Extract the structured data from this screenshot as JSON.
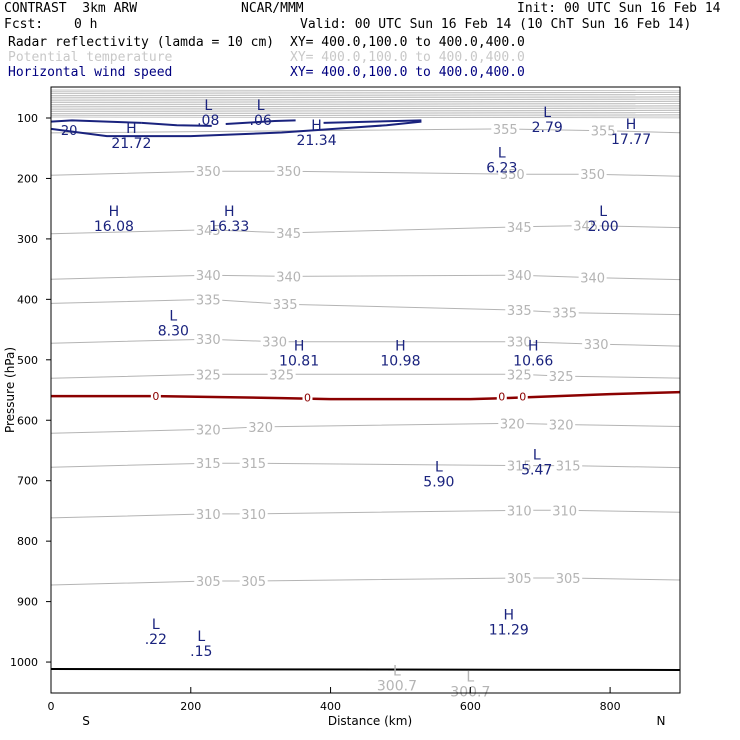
{
  "header": {
    "model": "CONTRAST  3km ARW",
    "org": "NCAR/MMM",
    "init": "Init: 00 UTC Sun 16 Feb 14",
    "fcst_label": "Fcst:",
    "fcst_value": "0 h",
    "valid": "Valid: 00 UTC Sun 16 Feb 14 (10 ChT Sun 16 Feb 14)",
    "fields": [
      {
        "name": "Radar reflectivity (lamda = 10 cm)",
        "xy": "XY= 400.0,100.0 to 400.0,400.0",
        "color": "#000000"
      },
      {
        "name": "Potential temperature",
        "xy": "XY= 400.0,100.0 to 400.0,400.0",
        "color": "#c8c8c8"
      },
      {
        "name": "Horizontal wind speed",
        "xy": "XY= 400.0,100.0 to 400.0,400.0",
        "color": "#000080"
      }
    ]
  },
  "chart_data": {
    "type": "cross-section contour",
    "xlabel": "Distance (km)",
    "ylabel": "Pressure (hPa)",
    "xlim": [
      0,
      900
    ],
    "ylim_pressure": [
      1050,
      50
    ],
    "x_ticks": [
      "0",
      "200",
      "400",
      "600",
      "800"
    ],
    "y_ticks": [
      "100",
      "200",
      "300",
      "400",
      "500",
      "600",
      "700",
      "800",
      "900",
      "1000"
    ],
    "x_end_labels": {
      "left": "S",
      "right": "N"
    },
    "colors": {
      "theta": "#b4b4b4",
      "wind": "#1a237e",
      "zero_contour": "#8b0000",
      "terrain": "#000000"
    },
    "theta_contours": [
      {
        "value": 355,
        "labels": [
          {
            "text": "355",
            "x": 650,
            "p": 118
          },
          {
            "text": "355",
            "x": 790,
            "p": 121
          }
        ]
      },
      {
        "value": 350,
        "labels": [
          {
            "text": "350",
            "x": 225,
            "p": 188
          },
          {
            "text": "350",
            "x": 340,
            "p": 188
          },
          {
            "text": "350",
            "x": 660,
            "p": 193
          },
          {
            "text": "350",
            "x": 775,
            "p": 193
          }
        ]
      },
      {
        "value": 345,
        "labels": [
          {
            "text": "345",
            "x": 225,
            "p": 285
          },
          {
            "text": "345",
            "x": 340,
            "p": 290
          },
          {
            "text": "345",
            "x": 670,
            "p": 280
          },
          {
            "text": "345",
            "x": 765,
            "p": 278
          }
        ]
      },
      {
        "value": 340,
        "labels": [
          {
            "text": "340",
            "x": 225,
            "p": 360
          },
          {
            "text": "340",
            "x": 340,
            "p": 362
          },
          {
            "text": "340",
            "x": 670,
            "p": 360
          },
          {
            "text": "340",
            "x": 775,
            "p": 364
          }
        ]
      },
      {
        "value": 335,
        "labels": [
          {
            "text": "335",
            "x": 225,
            "p": 400
          },
          {
            "text": "335",
            "x": 335,
            "p": 408
          },
          {
            "text": "335",
            "x": 670,
            "p": 418
          },
          {
            "text": "335",
            "x": 735,
            "p": 422
          }
        ]
      },
      {
        "value": 330,
        "labels": [
          {
            "text": "330",
            "x": 225,
            "p": 466
          },
          {
            "text": "330",
            "x": 320,
            "p": 470
          },
          {
            "text": "330",
            "x": 670,
            "p": 470
          },
          {
            "text": "330",
            "x": 780,
            "p": 474
          }
        ]
      },
      {
        "value": 325,
        "labels": [
          {
            "text": "325",
            "x": 225,
            "p": 524
          },
          {
            "text": "325",
            "x": 330,
            "p": 524
          },
          {
            "text": "325",
            "x": 670,
            "p": 524
          },
          {
            "text": "325",
            "x": 730,
            "p": 527
          }
        ]
      },
      {
        "value": 320,
        "labels": [
          {
            "text": "320",
            "x": 225,
            "p": 615
          },
          {
            "text": "320",
            "x": 300,
            "p": 611
          },
          {
            "text": "320",
            "x": 660,
            "p": 605
          },
          {
            "text": "320",
            "x": 730,
            "p": 607
          }
        ]
      },
      {
        "value": 315,
        "labels": [
          {
            "text": "315",
            "x": 225,
            "p": 671
          },
          {
            "text": "315",
            "x": 290,
            "p": 671
          },
          {
            "text": "315",
            "x": 670,
            "p": 675
          },
          {
            "text": "315",
            "x": 740,
            "p": 675
          }
        ]
      },
      {
        "value": 310,
        "labels": [
          {
            "text": "310",
            "x": 225,
            "p": 755
          },
          {
            "text": "310",
            "x": 290,
            "p": 755
          },
          {
            "text": "310",
            "x": 670,
            "p": 749
          },
          {
            "text": "310",
            "x": 735,
            "p": 749
          }
        ]
      },
      {
        "value": 305,
        "labels": [
          {
            "text": "305",
            "x": 225,
            "p": 866
          },
          {
            "text": "305",
            "x": 290,
            "p": 866
          },
          {
            "text": "305",
            "x": 670,
            "p": 861
          },
          {
            "text": "305",
            "x": 740,
            "p": 861
          }
        ]
      }
    ],
    "theta_extrema": [
      {
        "type": "L",
        "value": "300.7",
        "x": 495,
        "p": 1022
      },
      {
        "type": "L",
        "value": "300.7",
        "x": 600,
        "p": 1032
      }
    ],
    "wind_extrema": [
      {
        "type": "L",
        "value": ".08",
        "x": 225,
        "p": 87
      },
      {
        "type": "L",
        "value": ".06",
        "x": 300,
        "p": 87
      },
      {
        "type": "H",
        "value": "21.72",
        "x": 115,
        "p": 125
      },
      {
        "type": "H",
        "value": "21.34",
        "x": 380,
        "p": 120
      },
      {
        "type": "L",
        "value": "2.79",
        "x": 710,
        "p": 98
      },
      {
        "type": "H",
        "value": "17.77",
        "x": 830,
        "p": 118
      },
      {
        "type": "L",
        "value": "6.23",
        "x": 645,
        "p": 165
      },
      {
        "type": "H",
        "value": "16.08",
        "x": 90,
        "p": 262
      },
      {
        "type": "H",
        "value": "16.33",
        "x": 255,
        "p": 262
      },
      {
        "type": "L",
        "value": "2.00",
        "x": 790,
        "p": 262
      },
      {
        "type": "L",
        "value": "8.30",
        "x": 175,
        "p": 435
      },
      {
        "type": "H",
        "value": "10.81",
        "x": 355,
        "p": 485
      },
      {
        "type": "H",
        "value": "10.98",
        "x": 500,
        "p": 485
      },
      {
        "type": "H",
        "value": "10.66",
        "x": 690,
        "p": 485
      },
      {
        "type": "L",
        "value": "5.47",
        "x": 695,
        "p": 665
      },
      {
        "type": "L",
        "value": "5.90",
        "x": 555,
        "p": 685
      },
      {
        "type": "H",
        "value": "11.29",
        "x": 655,
        "p": 930
      },
      {
        "type": "L",
        "value": ".22",
        "x": 150,
        "p": 945
      },
      {
        "type": "L",
        "value": ".15",
        "x": 215,
        "p": 965
      }
    ],
    "wind_contours": [
      {
        "value": "20",
        "labels": [
          {
            "text": "20",
            "x": 26,
            "p": 120
          }
        ]
      }
    ],
    "reflectivity_zero_labels": [
      {
        "text": "0",
        "x": 150,
        "p": 560
      },
      {
        "text": "0",
        "x": 367,
        "p": 562
      },
      {
        "text": "0",
        "x": 645,
        "p": 561
      },
      {
        "text": "0",
        "x": 675,
        "p": 561
      }
    ]
  }
}
